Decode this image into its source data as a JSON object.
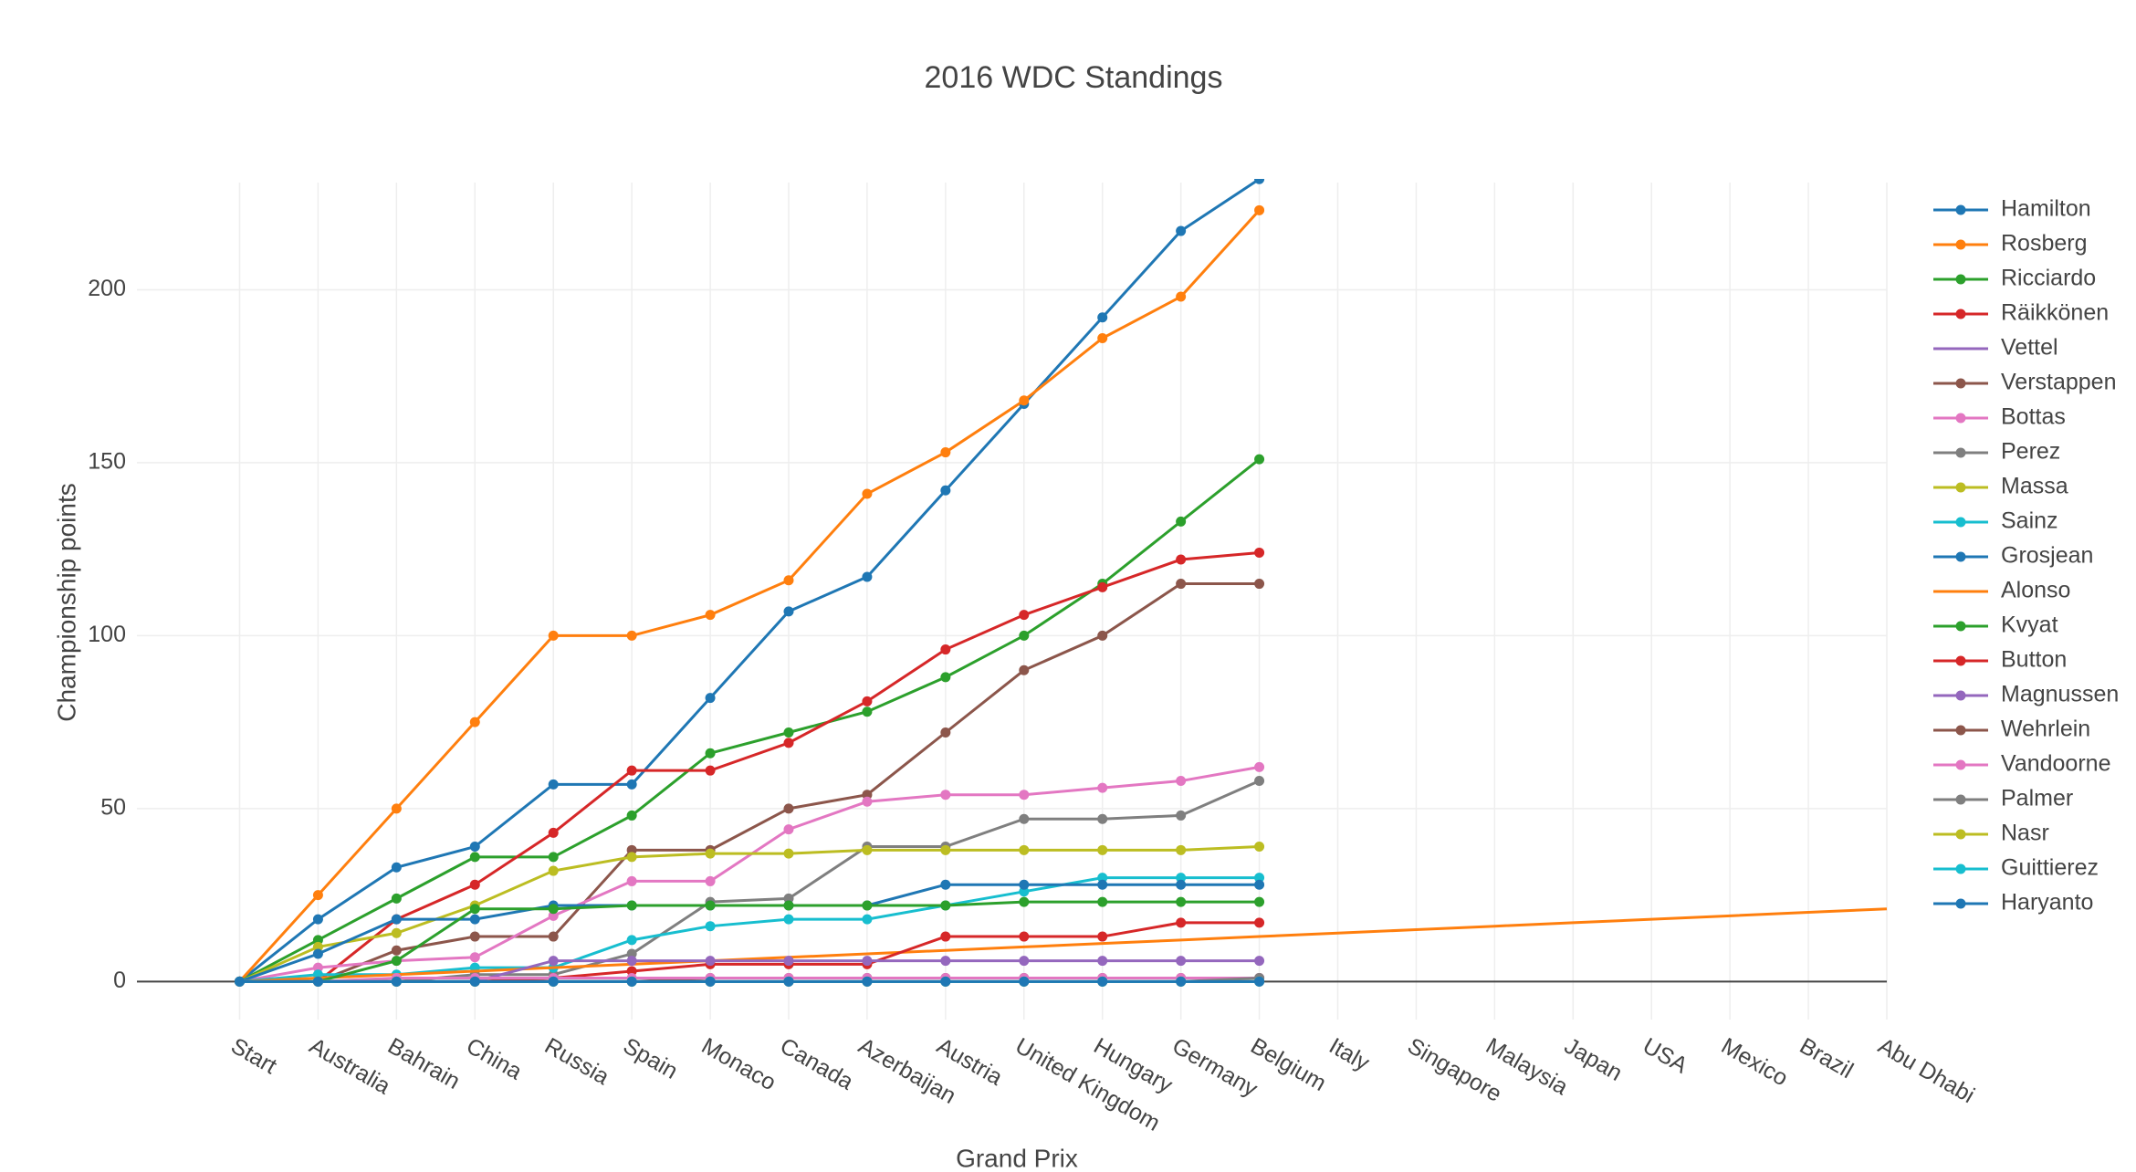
{
  "chart_data": {
    "type": "line",
    "title": "2016 WDC Standings",
    "x_label": "Grand Prix",
    "y_label": "Championship points",
    "categories": [
      "Start",
      "Australia",
      "Bahrain",
      "China",
      "Russia",
      "Spain",
      "Monaco",
      "Canada",
      "Azerbaijan",
      "Austria",
      "United Kingdom",
      "Hungary",
      "Germany",
      "Belgium",
      "Italy",
      "Singapore",
      "Malaysia",
      "Japan",
      "USA",
      "Mexico",
      "Brazil",
      "Abu Dhabi"
    ],
    "ylim": [
      -11,
      231
    ],
    "yticks": [
      0,
      50,
      100,
      150,
      200
    ],
    "grid": true,
    "legend": "right",
    "series": [
      {
        "name": "Hamilton",
        "color": "#1f77b4",
        "mode": "lines+markers",
        "values": [
          0,
          18,
          33,
          39,
          57,
          57,
          82,
          107,
          117,
          142,
          167,
          192,
          217,
          232,
          null,
          null,
          null,
          null,
          null,
          null,
          null,
          null
        ]
      },
      {
        "name": "Rosberg",
        "color": "#ff7f0e",
        "mode": "lines+markers",
        "values": [
          0,
          25,
          50,
          75,
          100,
          100,
          106,
          116,
          141,
          153,
          168,
          186,
          198,
          223,
          null,
          null,
          null,
          null,
          null,
          null,
          null,
          null
        ]
      },
      {
        "name": "Ricciardo",
        "color": "#2ca02c",
        "mode": "lines+markers",
        "values": [
          0,
          12,
          24,
          36,
          36,
          48,
          66,
          72,
          78,
          88,
          100,
          115,
          133,
          151,
          null,
          null,
          null,
          null,
          null,
          null,
          null,
          null
        ]
      },
      {
        "name": "Räikkönen",
        "color": "#d62728",
        "mode": "lines+markers",
        "values": [
          0,
          0,
          18,
          28,
          43,
          61,
          61,
          69,
          81,
          96,
          106,
          114,
          122,
          124,
          null,
          null,
          null,
          null,
          null,
          null,
          null,
          null
        ]
      },
      {
        "name": "Vettel",
        "color": "#9467bd",
        "mode": "lines",
        "values": [
          0,
          0,
          0,
          0,
          0,
          0,
          0,
          0,
          0,
          0,
          0,
          0,
          0,
          0,
          null,
          null,
          null,
          null,
          null,
          null,
          null,
          null
        ]
      },
      {
        "name": "Verstappen",
        "color": "#8c564b",
        "mode": "lines+markers",
        "values": [
          0,
          0,
          9,
          13,
          13,
          38,
          38,
          50,
          54,
          72,
          90,
          100,
          115,
          115,
          null,
          null,
          null,
          null,
          null,
          null,
          null,
          null
        ]
      },
      {
        "name": "Bottas",
        "color": "#e377c2",
        "mode": "lines+markers",
        "values": [
          0,
          4,
          6,
          7,
          19,
          29,
          29,
          44,
          52,
          54,
          54,
          56,
          58,
          62,
          null,
          null,
          null,
          null,
          null,
          null,
          null,
          null
        ]
      },
      {
        "name": "Perez",
        "color": "#7f7f7f",
        "mode": "lines+markers",
        "values": [
          0,
          0,
          0,
          2,
          2,
          8,
          23,
          24,
          39,
          39,
          47,
          47,
          48,
          58,
          null,
          null,
          null,
          null,
          null,
          null,
          null,
          null
        ]
      },
      {
        "name": "Massa",
        "color": "#bcbd22",
        "mode": "lines+markers",
        "values": [
          0,
          10,
          14,
          22,
          32,
          36,
          37,
          37,
          38,
          38,
          38,
          38,
          38,
          39,
          null,
          null,
          null,
          null,
          null,
          null,
          null,
          null
        ]
      },
      {
        "name": "Sainz",
        "color": "#17becf",
        "mode": "lines+markers",
        "values": [
          0,
          2,
          2,
          4,
          4,
          12,
          16,
          18,
          18,
          22,
          26,
          30,
          30,
          30,
          null,
          null,
          null,
          null,
          null,
          null,
          null,
          null
        ]
      },
      {
        "name": "Grosjean",
        "color": "#1f77b4",
        "mode": "lines+markers",
        "values": [
          0,
          8,
          18,
          18,
          22,
          22,
          22,
          22,
          22,
          28,
          28,
          28,
          28,
          28,
          null,
          null,
          null,
          null,
          null,
          null,
          null,
          null
        ]
      },
      {
        "name": "Alonso",
        "color": "#ff7f0e",
        "mode": "lines",
        "values": [
          0,
          1,
          2,
          3,
          4,
          5,
          6,
          7,
          8,
          9,
          10,
          11,
          12,
          13,
          14,
          15,
          16,
          17,
          18,
          19,
          20,
          21
        ]
      },
      {
        "name": "Kvyat",
        "color": "#2ca02c",
        "mode": "lines+markers",
        "values": [
          0,
          0,
          6,
          21,
          21,
          22,
          22,
          22,
          22,
          22,
          23,
          23,
          23,
          23,
          null,
          null,
          null,
          null,
          null,
          null,
          null,
          null
        ]
      },
      {
        "name": "Button",
        "color": "#d62728",
        "mode": "lines+markers",
        "values": [
          0,
          0,
          0,
          0,
          1,
          3,
          5,
          5,
          5,
          13,
          13,
          13,
          17,
          17,
          null,
          null,
          null,
          null,
          null,
          null,
          null,
          null
        ]
      },
      {
        "name": "Magnussen",
        "color": "#9467bd",
        "mode": "lines+markers",
        "values": [
          0,
          0,
          0,
          0,
          6,
          6,
          6,
          6,
          6,
          6,
          6,
          6,
          6,
          6,
          null,
          null,
          null,
          null,
          null,
          null,
          null,
          null
        ]
      },
      {
        "name": "Wehrlein",
        "color": "#8c564b",
        "mode": "lines+markers",
        "values": [
          0,
          0,
          0,
          0,
          0,
          0,
          1,
          1,
          1,
          1,
          1,
          1,
          1,
          1,
          null,
          null,
          null,
          null,
          null,
          null,
          null,
          null
        ]
      },
      {
        "name": "Vandoorne",
        "color": "#e377c2",
        "mode": "lines+markers",
        "values": [
          0,
          0,
          1,
          1,
          1,
          1,
          1,
          1,
          1,
          1,
          1,
          1,
          1,
          1,
          null,
          null,
          null,
          null,
          null,
          null,
          null,
          null
        ]
      },
      {
        "name": "Palmer",
        "color": "#7f7f7f",
        "mode": "lines+markers",
        "values": [
          0,
          0,
          0,
          0,
          0,
          0,
          0,
          0,
          0,
          0,
          0,
          0,
          0,
          1,
          null,
          null,
          null,
          null,
          null,
          null,
          null,
          null
        ]
      },
      {
        "name": "Nasr",
        "color": "#bcbd22",
        "mode": "lines+markers",
        "values": [
          0,
          0,
          0,
          0,
          0,
          0,
          0,
          0,
          0,
          0,
          0,
          0,
          0,
          0,
          null,
          null,
          null,
          null,
          null,
          null,
          null,
          null
        ]
      },
      {
        "name": "Guittierez",
        "color": "#17becf",
        "mode": "lines+markers",
        "values": [
          0,
          0,
          0,
          0,
          0,
          0,
          0,
          0,
          0,
          0,
          0,
          0,
          0,
          0,
          null,
          null,
          null,
          null,
          null,
          null,
          null,
          null
        ]
      },
      {
        "name": "Haryanto",
        "color": "#1f77b4",
        "mode": "lines+markers",
        "values": [
          0,
          0,
          0,
          0,
          0,
          0,
          0,
          0,
          0,
          0,
          0,
          0,
          0,
          0,
          null,
          null,
          null,
          null,
          null,
          null,
          null,
          null
        ]
      }
    ]
  }
}
